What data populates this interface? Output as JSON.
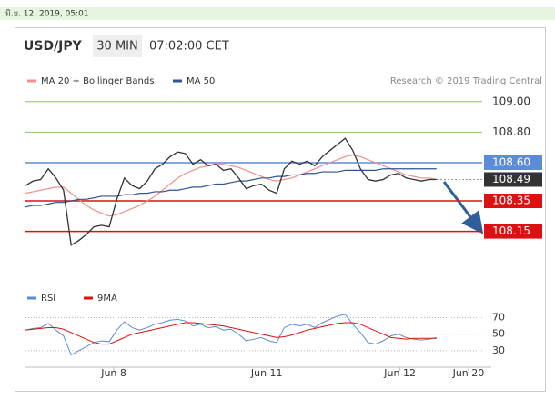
{
  "chart_data": {
    "type": "line",
    "timestamp": "มิ.ย. 12, 2019, 05:01",
    "title": "USD/JPY",
    "timeframe": "30 MIN",
    "time": "07:02:00 CET",
    "credit": "Research © 2019 Trading Central",
    "x": [
      0,
      1,
      2,
      3,
      4,
      5,
      6,
      7,
      8,
      9,
      10,
      11,
      12,
      13,
      14,
      15,
      16,
      17,
      18,
      19,
      20,
      21,
      22,
      23,
      24,
      25,
      26,
      27,
      28,
      29,
      30,
      31,
      32,
      33,
      34,
      35,
      36,
      37,
      38,
      39,
      40,
      41,
      42,
      43,
      44,
      45,
      46,
      47,
      48,
      49,
      50,
      51,
      52,
      53,
      54
    ],
    "xlim": [
      0,
      60
    ],
    "xticks": [
      {
        "value": 11.6,
        "label": "Jun 8"
      },
      {
        "value": 31.7,
        "label": "Jun 11"
      },
      {
        "value": 49.2,
        "label": "Jun 12"
      },
      {
        "value": 58.2,
        "label": "Jun 20"
      }
    ],
    "ylim": [
      107.85,
      109.1
    ],
    "yticks": [
      {
        "value": 109,
        "label": "109.00"
      },
      {
        "value": 108.8,
        "label": "108.80"
      }
    ],
    "tick_color": "#8dc46a",
    "series": [
      {
        "name": "MA 20 + Bollinger Bands",
        "color": "#f08f8f",
        "values": [
          108.4,
          108.41,
          108.42,
          108.43,
          108.44,
          108.44,
          108.4,
          108.36,
          108.32,
          108.29,
          108.27,
          108.25,
          108.26,
          108.28,
          108.3,
          108.32,
          108.35,
          108.38,
          108.42,
          108.46,
          108.5,
          108.53,
          108.55,
          108.57,
          108.58,
          108.59,
          108.59,
          108.58,
          108.57,
          108.55,
          108.53,
          108.51,
          108.49,
          108.48,
          108.49,
          108.5,
          108.52,
          108.54,
          108.56,
          108.58,
          108.6,
          108.62,
          108.64,
          108.65,
          108.64,
          108.62,
          108.6,
          108.58,
          108.56,
          108.54,
          108.52,
          108.51,
          108.5,
          108.5,
          108.49
        ]
      },
      {
        "name": "MA 50",
        "color": "#2f5597",
        "values": [
          108.31,
          108.32,
          108.32,
          108.33,
          108.34,
          108.34,
          108.35,
          108.36,
          108.36,
          108.37,
          108.38,
          108.38,
          108.38,
          108.39,
          108.39,
          108.4,
          108.4,
          108.41,
          108.41,
          108.42,
          108.42,
          108.43,
          108.44,
          108.44,
          108.45,
          108.46,
          108.46,
          108.47,
          108.48,
          108.48,
          108.49,
          108.5,
          108.5,
          108.51,
          108.51,
          108.52,
          108.52,
          108.53,
          108.53,
          108.54,
          108.54,
          108.54,
          108.55,
          108.55,
          108.55,
          108.55,
          108.55,
          108.56,
          108.56,
          108.56,
          108.56,
          108.56,
          108.56,
          108.56,
          108.56
        ]
      }
    ],
    "price": {
      "color": "#333333",
      "values": [
        108.45,
        108.48,
        108.49,
        108.56,
        108.5,
        108.42,
        108.06,
        108.09,
        108.13,
        108.18,
        108.19,
        108.18,
        108.36,
        108.5,
        108.45,
        108.43,
        108.48,
        108.56,
        108.59,
        108.64,
        108.67,
        108.66,
        108.59,
        108.62,
        108.58,
        108.59,
        108.55,
        108.56,
        108.5,
        108.43,
        108.45,
        108.46,
        108.42,
        108.4,
        108.56,
        108.61,
        108.59,
        108.61,
        108.58,
        108.64,
        108.68,
        108.72,
        108.76,
        108.68,
        108.56,
        108.49,
        108.48,
        108.49,
        108.52,
        108.53,
        108.5,
        108.49,
        108.48,
        108.49,
        108.49
      ]
    },
    "levels": [
      {
        "value": 108.6,
        "label": "108.60",
        "color": "#5b8bd9"
      },
      {
        "value": 108.49,
        "color": "#333333"
      },
      {
        "value": 108.35,
        "color": "#dd1111"
      },
      {
        "value": 108.15,
        "color": "#dd1111"
      }
    ],
    "rsi": {
      "ylim": [
        20,
        75
      ],
      "yticks": [
        70,
        50,
        30
      ],
      "series": [
        {
          "name": "RSI",
          "color": "#5b8bd9",
          "values": [
            55,
            57,
            58,
            63,
            55,
            48,
            25,
            30,
            35,
            40,
            42,
            41,
            55,
            65,
            58,
            55,
            58,
            62,
            64,
            67,
            68,
            66,
            60,
            62,
            58,
            59,
            55,
            56,
            50,
            42,
            44,
            46,
            42,
            40,
            58,
            62,
            60,
            62,
            58,
            64,
            68,
            72,
            74,
            62,
            52,
            40,
            38,
            42,
            48,
            50,
            46,
            44,
            43,
            44,
            46
          ]
        },
        {
          "name": "9MA",
          "color": "#dd1111",
          "values": [
            55,
            56,
            57,
            58,
            58,
            56,
            52,
            48,
            44,
            40,
            38,
            38,
            42,
            46,
            50,
            52,
            54,
            56,
            58,
            60,
            62,
            64,
            64,
            63,
            62,
            61,
            60,
            58,
            56,
            54,
            52,
            50,
            48,
            46,
            47,
            49,
            52,
            55,
            57,
            59,
            61,
            63,
            64,
            64,
            62,
            58,
            54,
            50,
            46,
            45,
            44,
            45,
            45,
            45,
            45
          ]
        }
      ]
    }
  }
}
